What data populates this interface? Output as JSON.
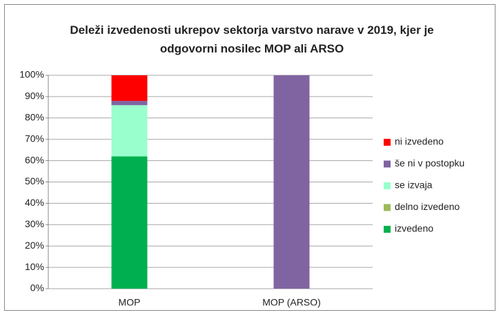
{
  "chart_data": {
    "type": "stacked_bar",
    "title": "Deleži izvedenosti ukrepov sektorja varstvo narave v 2019, kjer je odgovorni nosilec MOP ali ARSO",
    "categories": [
      "MOP",
      "MOP (ARSO)"
    ],
    "series": [
      {
        "name": "izvedeno",
        "color": "#00b050",
        "values": [
          62,
          0
        ]
      },
      {
        "name": "delno izvedeno",
        "color": "#9bbb59",
        "values": [
          0,
          0
        ]
      },
      {
        "name": "se izvaja",
        "color": "#99ffcc",
        "values": [
          24,
          0
        ]
      },
      {
        "name": "še ni v postopku",
        "color": "#8064a2",
        "values": [
          2,
          100
        ]
      },
      {
        "name": "ni izvedeno",
        "color": "#ff0000",
        "values": [
          12,
          0
        ]
      }
    ],
    "ylim": [
      0,
      100
    ],
    "yticks": [
      {
        "value": 0,
        "label": "0%"
      },
      {
        "value": 10,
        "label": "10%"
      },
      {
        "value": 20,
        "label": "20%"
      },
      {
        "value": 30,
        "label": "30%"
      },
      {
        "value": 40,
        "label": "40%"
      },
      {
        "value": 50,
        "label": "50%"
      },
      {
        "value": 60,
        "label": "60%"
      },
      {
        "value": 70,
        "label": "70%"
      },
      {
        "value": 80,
        "label": "80%"
      },
      {
        "value": 90,
        "label": "90%"
      },
      {
        "value": 100,
        "label": "100%"
      }
    ],
    "grid": true,
    "legend": "right"
  }
}
